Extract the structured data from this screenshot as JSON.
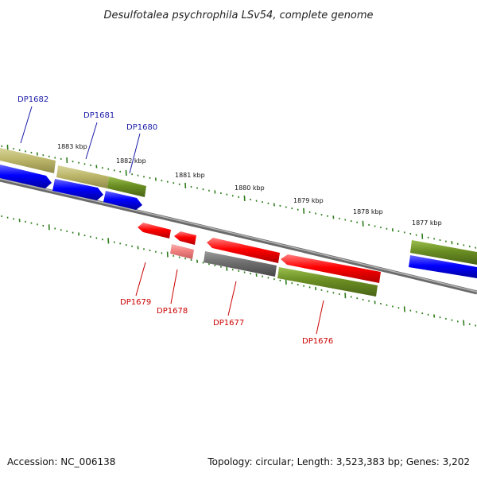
{
  "title": "Desulfotalea psychrophila LSv54, complete genome",
  "footer": {
    "accession": "Accession: NC_006138",
    "summary": "Topology: circular; Length: 3,523,383 bp; Genes: 3,202"
  },
  "colors": {
    "forward_label": "#1a1aa8",
    "reverse_label": "#cc0000",
    "tick": "#2e7d1c",
    "backbone": "#808080",
    "cds": "#ff0000",
    "cds_forward": "#0000ff",
    "olive": "#6b8e23",
    "khaki": "#bdb76b",
    "gray_feature": "#6e6e6e",
    "pink": "#f08080"
  },
  "scale_labels": [
    "1883 kbp",
    "1882 kbp",
    "1881 kbp",
    "1880 kbp",
    "1879 kbp",
    "1878 kbp",
    "1877 kbp"
  ],
  "genes_forward": [
    "DP1682",
    "DP1681",
    "DP1680"
  ],
  "genes_reverse": [
    "DP1679",
    "DP1678",
    "DP1677",
    "DP1676"
  ]
}
